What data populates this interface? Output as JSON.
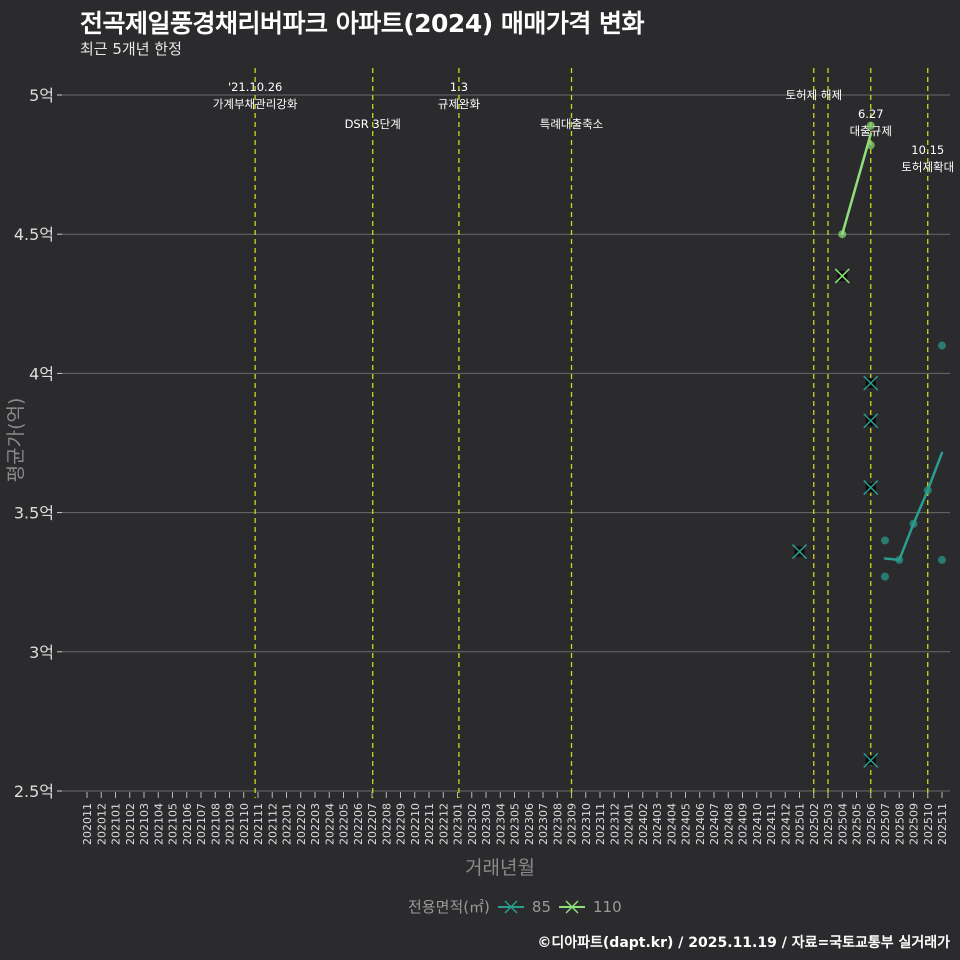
{
  "title": "전곡제일풍경채리버파크 아파트(2024) 매매가격 변화",
  "subtitle": "최근 5개년 한정",
  "footer": "©디아파트(dapt.kr) / 2025.11.19 / 자료=국토교통부 실거래가",
  "chart_data": {
    "type": "line",
    "xlabel": "거래년월",
    "ylabel": "평균가(억)",
    "ylim": [
      2.5,
      5.1
    ],
    "yticks": [
      {
        "v": 2.5,
        "label": "2.5억"
      },
      {
        "v": 3.0,
        "label": "3억"
      },
      {
        "v": 3.5,
        "label": "3.5억"
      },
      {
        "v": 4.0,
        "label": "4억"
      },
      {
        "v": 4.5,
        "label": "4.5억"
      },
      {
        "v": 5.0,
        "label": "5억"
      }
    ],
    "x_categories": [
      "202011",
      "202012",
      "202101",
      "202102",
      "202103",
      "202104",
      "202105",
      "202106",
      "202107",
      "202108",
      "202109",
      "202110",
      "202111",
      "202112",
      "202201",
      "202202",
      "202203",
      "202204",
      "202205",
      "202206",
      "202207",
      "202208",
      "202209",
      "202210",
      "202211",
      "202212",
      "202301",
      "202302",
      "202303",
      "202304",
      "202305",
      "202306",
      "202307",
      "202308",
      "202309",
      "202310",
      "202311",
      "202312",
      "202401",
      "202402",
      "202403",
      "202404",
      "202405",
      "202406",
      "202407",
      "202408",
      "202409",
      "202410",
      "202411",
      "202412",
      "202501",
      "202502",
      "202503",
      "202504",
      "202505",
      "202506",
      "202507",
      "202508",
      "202509",
      "202510",
      "202511"
    ],
    "legend": {
      "title": "전용면적(㎡)",
      "position": "bottom"
    },
    "series": [
      {
        "name": "85",
        "color": "#2a9d8f",
        "line": [
          [
            "202507",
            3.335
          ],
          [
            "202508",
            3.33
          ],
          [
            "202509",
            3.46
          ],
          [
            "202510",
            3.58
          ],
          [
            "202511",
            3.715
          ]
        ],
        "points": [
          [
            "202507",
            3.4
          ],
          [
            "202507",
            3.27
          ],
          [
            "202508",
            3.33
          ],
          [
            "202509",
            3.46
          ],
          [
            "202510",
            3.58
          ],
          [
            "202511",
            4.1
          ],
          [
            "202511",
            3.33
          ]
        ],
        "cancelled": [
          [
            "202501",
            3.36
          ],
          [
            "202506",
            3.965
          ],
          [
            "202506",
            3.83
          ],
          [
            "202506",
            3.59
          ],
          [
            "202506",
            2.61
          ]
        ]
      },
      {
        "name": "110",
        "color": "#8ee07a",
        "line": [
          [
            "202504",
            4.5
          ],
          [
            "202506",
            4.86
          ]
        ],
        "points": [
          [
            "202504",
            4.5
          ],
          [
            "202506",
            4.89
          ],
          [
            "202506",
            4.82
          ]
        ],
        "cancelled": [
          [
            "202504",
            4.35
          ]
        ]
      }
    ],
    "events": [
      {
        "month": "202110",
        "offset": 0.8,
        "lines": [
          "'21.10.26",
          "가계부채관리강화"
        ],
        "row": 0
      },
      {
        "month": "202207",
        "offset": 0.05,
        "lines": [
          "DSR 3단계"
        ],
        "row": 2
      },
      {
        "month": "202301",
        "offset": 0.1,
        "lines": [
          "1.3",
          "규제완화"
        ],
        "row": 0
      },
      {
        "month": "202309",
        "offset": 0.0,
        "lines": [
          "특례대출축소"
        ],
        "row": 2
      },
      {
        "month": "202502",
        "offset": 0.0,
        "lines": [
          "토허제 해제"
        ],
        "row": 1
      },
      {
        "month": "202503",
        "offset": 0.0,
        "lines": [],
        "row": 1
      },
      {
        "month": "202506",
        "offset": 0.0,
        "lines": [
          "6.27",
          "대출규제"
        ],
        "row": 3
      },
      {
        "month": "202510",
        "offset": 0.0,
        "lines": [
          "10.15",
          "토허제확대"
        ],
        "row": 3
      }
    ],
    "event_line_color": "#d4d41a",
    "grid": true
  }
}
